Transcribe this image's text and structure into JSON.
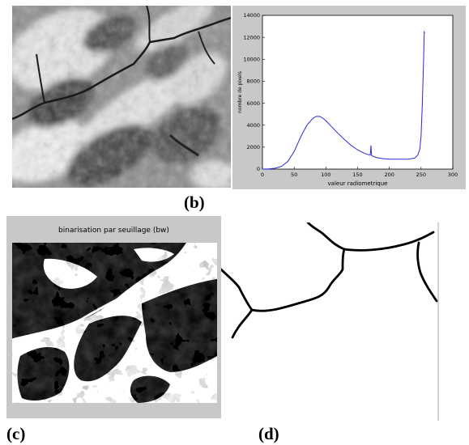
{
  "figure": {
    "label_b": "(b)",
    "label_c": "(c)",
    "label_d": "(d)"
  },
  "panel_c": {
    "title": "binarisation par seuillage  (bw)"
  },
  "chart_data": {
    "type": "line",
    "title": "",
    "xlabel": "valeur radiometrique",
    "ylabel": "nombre de pixels",
    "xlim": [
      0,
      300
    ],
    "ylim": [
      0,
      14000
    ],
    "xticks": [
      "0",
      "50",
      "100",
      "150",
      "200",
      "250",
      "300"
    ],
    "yticks": [
      "0",
      "2000",
      "4000",
      "6000",
      "8000",
      "10000",
      "12000",
      "14000"
    ],
    "grid": false,
    "series": [
      {
        "color": "#2a2ae0",
        "x": [
          0,
          10,
          20,
          30,
          40,
          50,
          60,
          70,
          80,
          85,
          90,
          95,
          100,
          110,
          120,
          130,
          140,
          150,
          160,
          165,
          168,
          170,
          171,
          172,
          175,
          180,
          190,
          200,
          210,
          220,
          230,
          240,
          245,
          248,
          250,
          252,
          254,
          255,
          256
        ],
        "y": [
          0,
          20,
          80,
          250,
          700,
          1600,
          2900,
          4000,
          4650,
          4800,
          4800,
          4650,
          4400,
          3800,
          3200,
          2650,
          2150,
          1750,
          1450,
          1350,
          1300,
          1300,
          2150,
          1250,
          1150,
          1050,
          950,
          900,
          900,
          900,
          900,
          1000,
          1300,
          1800,
          3000,
          6000,
          10000,
          12500,
          12400
        ]
      }
    ]
  }
}
